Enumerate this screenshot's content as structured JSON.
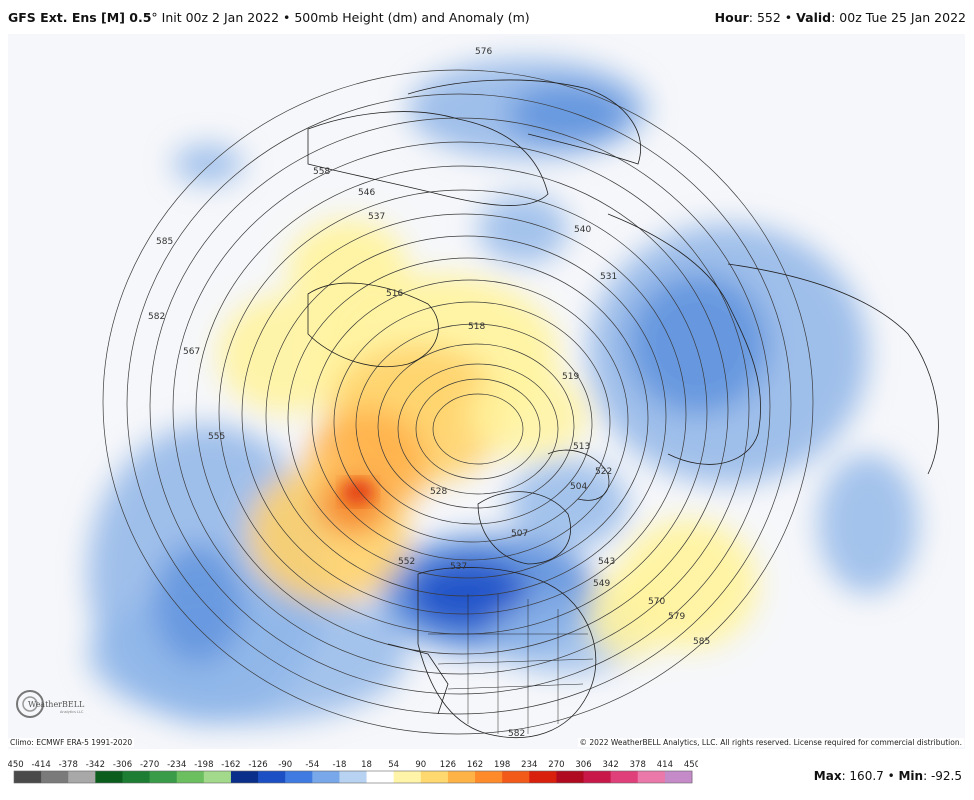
{
  "header": {
    "model": "GFS Ext. Ens [M] 0.5",
    "degree": "°",
    "init": " Init 00z 2 Jan 2022 • 500mb Height (dm) and Anomaly (m)",
    "hour_label": "Hour",
    "hour_value": ": 552 • ",
    "valid_label": "Valid",
    "valid_value": ": 00z Tue 25 Jan 2022"
  },
  "footer": {
    "climo": "Climo: ECMWF ERA-5 1991-2020",
    "copyright": "© 2022 WeatherBELL Analytics, LLC. All rights reserved. License required for commercial distribution.",
    "max_label": "Max",
    "max_value": ": 160.7 • ",
    "min_label": "Min",
    "min_value": ": -92.5"
  },
  "logo": {
    "text": "WeatherBELL",
    "sub": "Analytics LLC"
  },
  "colorbar": {
    "ticks": [
      "-450",
      "-414",
      "-378",
      "-342",
      "-306",
      "-270",
      "-234",
      "-198",
      "-162",
      "-126",
      "-90",
      "-54",
      "-18",
      "18",
      "54",
      "90",
      "126",
      "162",
      "198",
      "234",
      "270",
      "306",
      "342",
      "378",
      "414",
      "450"
    ],
    "colors": [
      "#4a4a4a",
      "#7a7a7a",
      "#a8a8a8",
      "#0b5d1e",
      "#1d7d33",
      "#3a9b48",
      "#6cbf5f",
      "#a3d98a",
      "#0a2f8a",
      "#1c4fc4",
      "#3f7be0",
      "#79a8ea",
      "#b8d2f2",
      "#ffffff",
      "#fff4a8",
      "#ffd970",
      "#ffb347",
      "#ff8a2a",
      "#f25a1a",
      "#d8200c",
      "#b00a20",
      "#c8184a",
      "#e0407a",
      "#ea78a8",
      "#c58ac8"
    ]
  },
  "contour_labels": [
    "576",
    "558",
    "546",
    "537",
    "516",
    "518",
    "519",
    "585",
    "582",
    "567",
    "555",
    "552",
    "528",
    "537",
    "507",
    "504",
    "513",
    "522",
    "543",
    "549",
    "570",
    "579",
    "585",
    "582",
    "540",
    "531"
  ],
  "colors": {
    "background": "#ffffff",
    "land_line": "#222222",
    "contour": "#333333"
  }
}
